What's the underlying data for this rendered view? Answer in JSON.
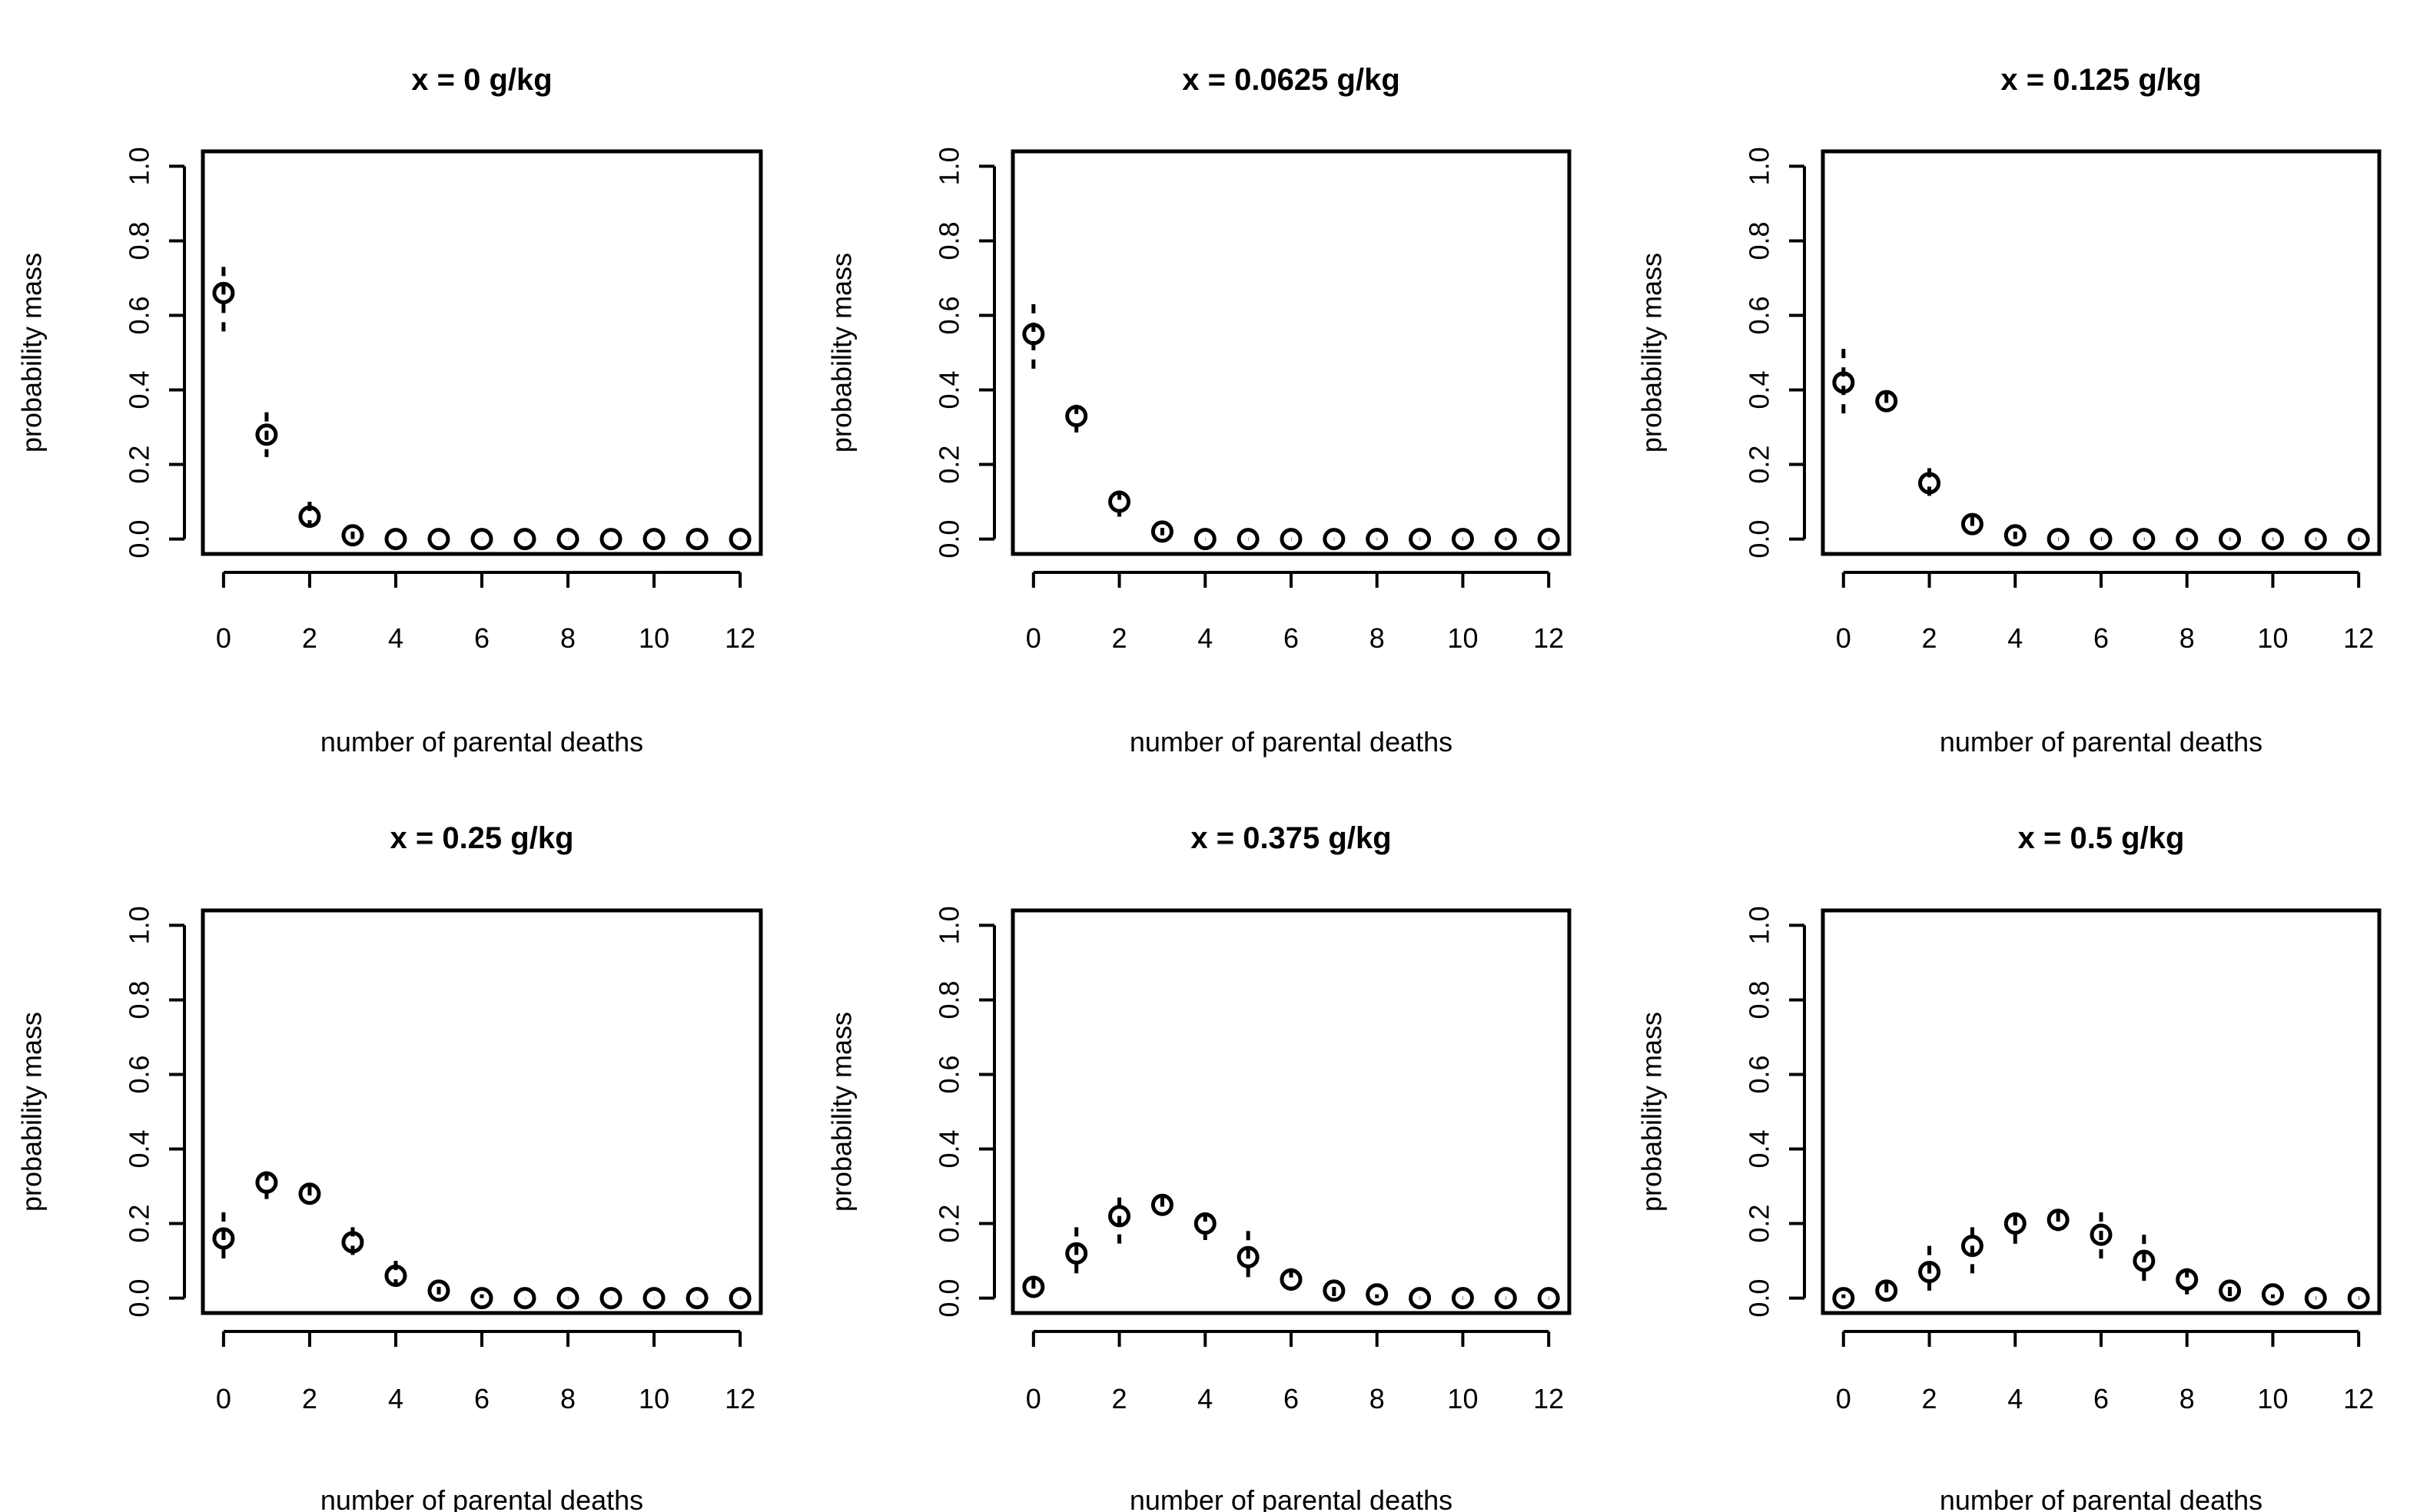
{
  "chart_data": [
    {
      "type": "scatter",
      "title": "x = 0 g/kg",
      "xlabel": "number of parental deaths",
      "ylabel": "probability mass",
      "xlim": [
        0,
        12
      ],
      "ylim": [
        0,
        1
      ],
      "x_ticks": [
        0,
        2,
        4,
        6,
        8,
        10,
        12
      ],
      "y_ticks": [
        "0.0",
        "0.2",
        "0.4",
        "0.6",
        "0.8",
        "1.0"
      ],
      "x": [
        0,
        1,
        2,
        3,
        4,
        5,
        6,
        7,
        8,
        9,
        10,
        11,
        12
      ],
      "values": [
        0.66,
        0.28,
        0.06,
        0.01,
        0.0,
        0.0,
        0.0,
        0.0,
        0.0,
        0.0,
        0.0,
        0.0,
        0.0
      ],
      "lower": [
        0.55,
        0.22,
        0.03,
        0.0,
        0.0,
        0.0,
        0.0,
        0.0,
        0.0,
        0.0,
        0.0,
        0.0,
        0.0
      ],
      "upper": [
        0.73,
        0.34,
        0.1,
        0.02,
        0.0,
        0.0,
        0.0,
        0.0,
        0.0,
        0.0,
        0.0,
        0.0,
        0.0
      ]
    },
    {
      "type": "scatter",
      "title": "x = 0.0625 g/kg",
      "xlabel": "number of parental deaths",
      "ylabel": "probability mass",
      "xlim": [
        0,
        12
      ],
      "ylim": [
        0,
        1
      ],
      "x_ticks": [
        0,
        2,
        4,
        6,
        8,
        10,
        12
      ],
      "y_ticks": [
        "0.0",
        "0.2",
        "0.4",
        "0.6",
        "0.8",
        "1.0"
      ],
      "x": [
        0,
        1,
        2,
        3,
        4,
        5,
        6,
        7,
        8,
        9,
        10,
        11,
        12
      ],
      "values": [
        0.55,
        0.33,
        0.1,
        0.02,
        0.0,
        0.0,
        0.0,
        0.0,
        0.0,
        0.0,
        0.0,
        0.0,
        0.0
      ],
      "lower": [
        0.45,
        0.28,
        0.06,
        0.01,
        0.0,
        0.0,
        0.0,
        0.0,
        0.0,
        0.0,
        0.0,
        0.0,
        0.0
      ],
      "upper": [
        0.63,
        0.36,
        0.13,
        0.03,
        0.0,
        0.0,
        0.0,
        0.0,
        0.0,
        0.0,
        0.0,
        0.0,
        0.0
      ]
    },
    {
      "type": "scatter",
      "title": "x = 0.125 g/kg",
      "xlabel": "number of parental deaths",
      "ylabel": "probability mass",
      "xlim": [
        0,
        12
      ],
      "ylim": [
        0,
        1
      ],
      "x_ticks": [
        0,
        2,
        4,
        6,
        8,
        10,
        12
      ],
      "y_ticks": [
        "0.0",
        "0.2",
        "0.4",
        "0.6",
        "0.8",
        "1.0"
      ],
      "x": [
        0,
        1,
        2,
        3,
        4,
        5,
        6,
        7,
        8,
        9,
        10,
        11,
        12
      ],
      "values": [
        0.42,
        0.37,
        0.15,
        0.04,
        0.01,
        0.0,
        0.0,
        0.0,
        0.0,
        0.0,
        0.0,
        0.0,
        0.0
      ],
      "lower": [
        0.32,
        0.35,
        0.1,
        0.02,
        0.0,
        0.0,
        0.0,
        0.0,
        0.0,
        0.0,
        0.0,
        0.0,
        0.0
      ],
      "upper": [
        0.51,
        0.39,
        0.19,
        0.06,
        0.02,
        0.0,
        0.0,
        0.0,
        0.0,
        0.0,
        0.0,
        0.0,
        0.0
      ]
    },
    {
      "type": "scatter",
      "title": "x = 0.25 g/kg",
      "xlabel": "number of parental deaths",
      "ylabel": "probability mass",
      "xlim": [
        0,
        12
      ],
      "ylim": [
        0,
        1
      ],
      "x_ticks": [
        0,
        2,
        4,
        6,
        8,
        10,
        12
      ],
      "y_ticks": [
        "0.0",
        "0.2",
        "0.4",
        "0.6",
        "0.8",
        "1.0"
      ],
      "x": [
        0,
        1,
        2,
        3,
        4,
        5,
        6,
        7,
        8,
        9,
        10,
        11,
        12
      ],
      "values": [
        0.16,
        0.31,
        0.28,
        0.15,
        0.06,
        0.02,
        0.0,
        0.0,
        0.0,
        0.0,
        0.0,
        0.0,
        0.0
      ],
      "lower": [
        0.1,
        0.25,
        0.26,
        0.1,
        0.03,
        0.01,
        0.0,
        0.0,
        0.0,
        0.0,
        0.0,
        0.0,
        0.0
      ],
      "upper": [
        0.23,
        0.34,
        0.3,
        0.19,
        0.1,
        0.03,
        0.01,
        0.0,
        0.0,
        0.0,
        0.0,
        0.0,
        0.0
      ]
    },
    {
      "type": "scatter",
      "title": "x = 0.375 g/kg",
      "xlabel": "number of parental deaths",
      "ylabel": "probability mass",
      "xlim": [
        0,
        12
      ],
      "ylim": [
        0,
        1
      ],
      "x_ticks": [
        0,
        2,
        4,
        6,
        8,
        10,
        12
      ],
      "y_ticks": [
        "0.0",
        "0.2",
        "0.4",
        "0.6",
        "0.8",
        "1.0"
      ],
      "x": [
        0,
        1,
        2,
        3,
        4,
        5,
        6,
        7,
        8,
        9,
        10,
        11,
        12
      ],
      "values": [
        0.03,
        0.12,
        0.22,
        0.25,
        0.2,
        0.11,
        0.05,
        0.02,
        0.01,
        0.0,
        0.0,
        0.0,
        0.0
      ],
      "lower": [
        0.01,
        0.06,
        0.14,
        0.23,
        0.14,
        0.05,
        0.02,
        0.0,
        0.0,
        0.0,
        0.0,
        0.0,
        0.0
      ],
      "upper": [
        0.05,
        0.19,
        0.27,
        0.27,
        0.23,
        0.18,
        0.08,
        0.03,
        0.01,
        0.0,
        0.0,
        0.0,
        0.0
      ]
    },
    {
      "type": "scatter",
      "title": "x = 0.5 g/kg",
      "xlabel": "number of parental deaths",
      "ylabel": "probability mass",
      "xlim": [
        0,
        12
      ],
      "ylim": [
        0,
        1
      ],
      "x_ticks": [
        0,
        2,
        4,
        6,
        8,
        10,
        12
      ],
      "y_ticks": [
        "0.0",
        "0.2",
        "0.4",
        "0.6",
        "0.8",
        "1.0"
      ],
      "x": [
        0,
        1,
        2,
        3,
        4,
        5,
        6,
        7,
        8,
        9,
        10,
        11,
        12
      ],
      "values": [
        0.0,
        0.02,
        0.07,
        0.14,
        0.2,
        0.21,
        0.17,
        0.1,
        0.05,
        0.02,
        0.01,
        0.0,
        0.0
      ],
      "lower": [
        0.0,
        0.0,
        0.02,
        0.06,
        0.13,
        0.18,
        0.1,
        0.04,
        0.01,
        0.0,
        0.0,
        0.0,
        0.0
      ],
      "upper": [
        0.01,
        0.04,
        0.14,
        0.19,
        0.22,
        0.23,
        0.23,
        0.17,
        0.08,
        0.03,
        0.01,
        0.0,
        0.0
      ]
    }
  ]
}
